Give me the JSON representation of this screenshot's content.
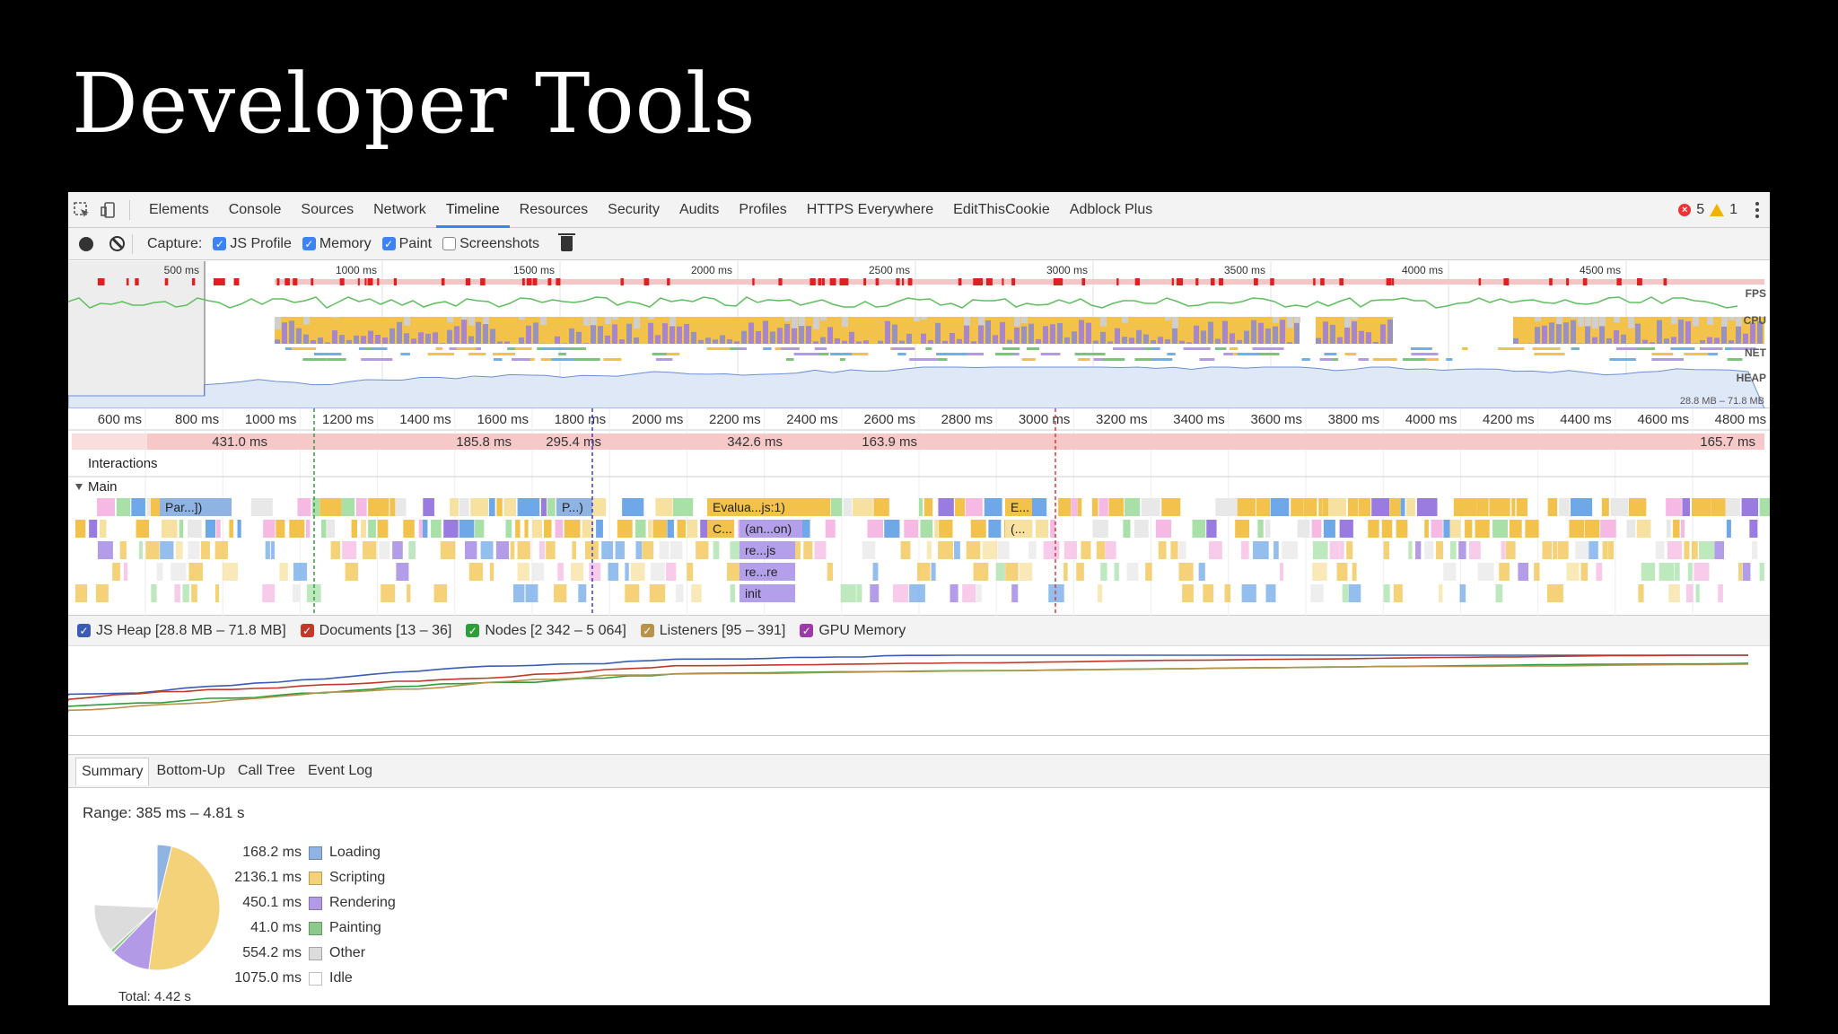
{
  "slide": {
    "title": "Developer Tools"
  },
  "tabs": [
    {
      "label": "Elements"
    },
    {
      "label": "Console"
    },
    {
      "label": "Sources"
    },
    {
      "label": "Network"
    },
    {
      "label": "Timeline",
      "active": true
    },
    {
      "label": "Resources"
    },
    {
      "label": "Security"
    },
    {
      "label": "Audits"
    },
    {
      "label": "Profiles"
    },
    {
      "label": "HTTPS Everywhere"
    },
    {
      "label": "EditThisCookie"
    },
    {
      "label": "Adblock Plus"
    }
  ],
  "status": {
    "errors": "5",
    "warnings": "1"
  },
  "capture": {
    "label": "Capture:",
    "options": [
      {
        "label": "JS Profile",
        "checked": true
      },
      {
        "label": "Memory",
        "checked": true
      },
      {
        "label": "Paint",
        "checked": true
      },
      {
        "label": "Screenshots",
        "checked": false
      }
    ]
  },
  "overview": {
    "ticks": [
      "500 ms",
      "1000 ms",
      "1500 ms",
      "2000 ms",
      "2500 ms",
      "3000 ms",
      "3500 ms",
      "4000 ms",
      "4500 ms"
    ],
    "lanes": [
      "FPS",
      "CPU",
      "NET",
      "HEAP"
    ],
    "heap_range": "28.8 MB – 71.8 MB"
  },
  "ruler": {
    "ticks": [
      "600 ms",
      "800 ms",
      "1000 ms",
      "1200 ms",
      "1400 ms",
      "1600 ms",
      "1800 ms",
      "2000 ms",
      "2200 ms",
      "2400 ms",
      "2600 ms",
      "2800 ms",
      "3000 ms",
      "3200 ms",
      "3400 ms",
      "3600 ms",
      "3800 ms",
      "4000 ms",
      "4200 ms",
      "4400 ms",
      "4600 ms",
      "4800 ms"
    ]
  },
  "frames": [
    "431.0 ms",
    "185.8 ms",
    "295.4 ms",
    "342.6 ms",
    "163.9 ms",
    "165.7 ms"
  ],
  "interactions_label": "Interactions",
  "main_label": "Main",
  "flame_labels": [
    "Par...])",
    "P...)",
    "Evalua...js:1)",
    "E...",
    "C...",
    "(an...on)",
    "(...",
    "re...js",
    "re...re",
    "init"
  ],
  "counters": [
    {
      "label": "JS Heap [28.8 MB – 71.8 MB]",
      "color": "#3b5bb5"
    },
    {
      "label": "Documents [13 – 36]",
      "color": "#c0392b"
    },
    {
      "label": "Nodes [2 342 – 5 064]",
      "color": "#2e9e3a"
    },
    {
      "label": "Listeners [95 – 391]",
      "color": "#b8934a"
    },
    {
      "label": "GPU Memory",
      "color": "#9b3aa8"
    }
  ],
  "bottom_tabs": [
    {
      "label": "Summary",
      "active": true
    },
    {
      "label": "Bottom-Up"
    },
    {
      "label": "Call Tree"
    },
    {
      "label": "Event Log"
    }
  ],
  "summary": {
    "range": "Range: 385 ms – 4.81 s",
    "total": "Total: 4.42 s"
  },
  "chart_data": {
    "type": "pie",
    "categories": [
      "Loading",
      "Scripting",
      "Rendering",
      "Painting",
      "Other",
      "Idle"
    ],
    "values": [
      168.2,
      2136.1,
      450.1,
      41.0,
      554.2,
      1075.0
    ],
    "value_labels": [
      "168.2 ms",
      "2136.1 ms",
      "450.1 ms",
      "41.0 ms",
      "554.2 ms",
      "1075.0 ms"
    ],
    "colors": [
      "#8fb4e3",
      "#f3d27a",
      "#b39ae6",
      "#8cc98a",
      "#dcdcdc",
      "#ffffff"
    ]
  }
}
